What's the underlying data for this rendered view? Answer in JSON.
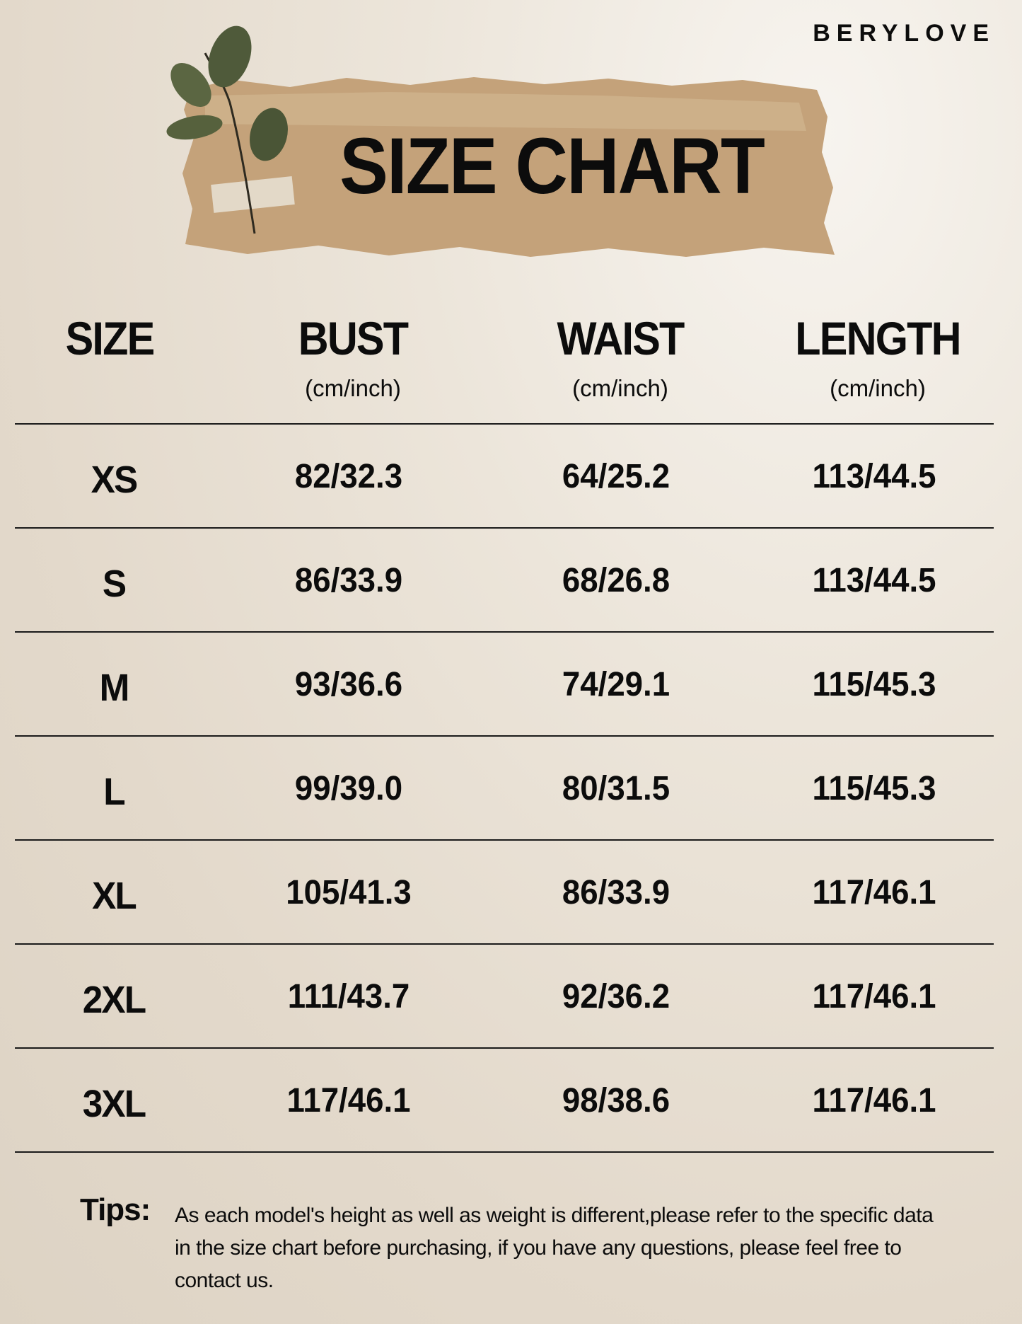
{
  "brand": "BERYLOVE",
  "title": "SIZE CHART",
  "colors": {
    "banner": "#c4a27a",
    "text": "#0c0c0c",
    "background": "#e6ddd0"
  },
  "table": {
    "headers": [
      {
        "label": "SIZE",
        "unit": ""
      },
      {
        "label": "BUST",
        "unit": "(cm/inch)"
      },
      {
        "label": "WAIST",
        "unit": "(cm/inch)"
      },
      {
        "label": "LENGTH",
        "unit": "(cm/inch)"
      }
    ],
    "rows": [
      [
        "XS",
        "82/32.3",
        "64/25.2",
        "113/44.5"
      ],
      [
        "S",
        "86/33.9",
        "68/26.8",
        "113/44.5"
      ],
      [
        "M",
        "93/36.6",
        "74/29.1",
        "115/45.3"
      ],
      [
        "L",
        "99/39.0",
        "80/31.5",
        "115/45.3"
      ],
      [
        "XL",
        "105/41.3",
        "86/33.9",
        "117/46.1"
      ],
      [
        "2XL",
        "111/43.7",
        "92/36.2",
        "117/46.1"
      ],
      [
        "3XL",
        "117/46.1",
        "98/38.6",
        "117/46.1"
      ]
    ]
  },
  "tips": {
    "label": "Tips:",
    "text": "As each model's height as well as weight is different,please refer to the specific data in the size chart before purchasing, if you have any questions, please feel free to contact us."
  }
}
